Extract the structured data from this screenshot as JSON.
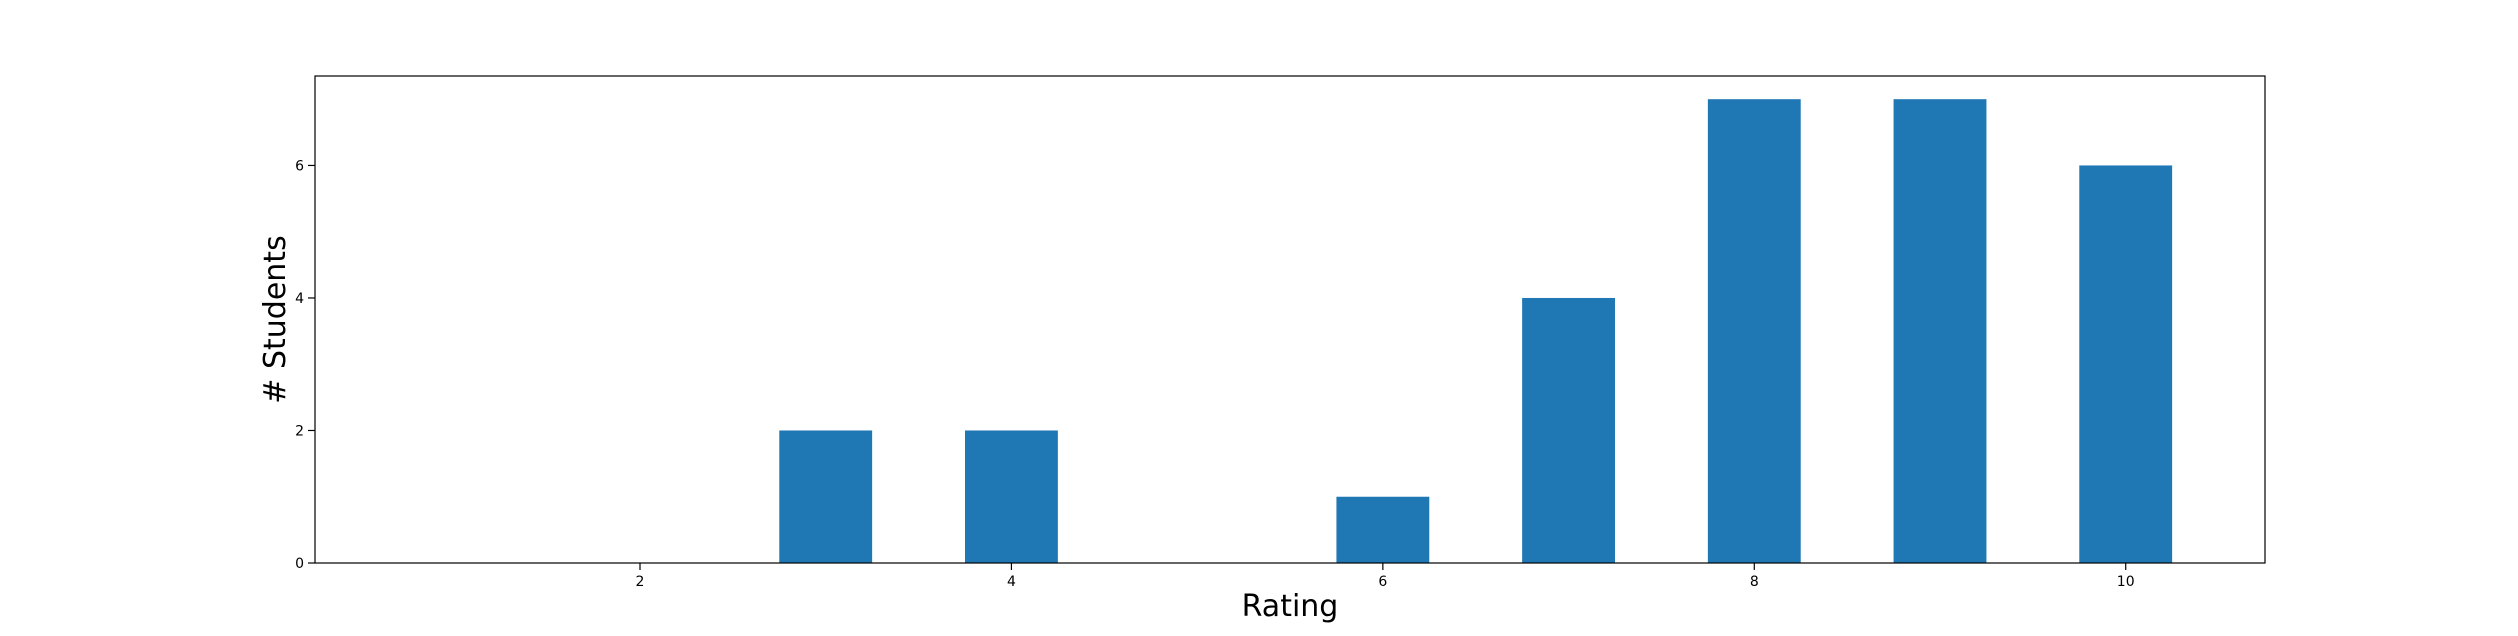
{
  "chart_data": {
    "type": "bar",
    "title": "",
    "xlabel": "Rating",
    "ylabel": "# Students",
    "x": [
      1,
      2,
      3,
      4,
      5,
      6,
      7,
      8,
      9,
      10
    ],
    "values": [
      0,
      0,
      2,
      2,
      0,
      1,
      4,
      7,
      7,
      6
    ],
    "xticks": [
      2,
      4,
      6,
      8,
      10
    ],
    "yticks": [
      0,
      2,
      4,
      6
    ],
    "xlim": [
      0.25,
      10.75
    ],
    "ylim": [
      0,
      7.35
    ],
    "bar_width": 0.5,
    "bar_color": "#1f77b4",
    "grid": false,
    "legend": "none"
  }
}
